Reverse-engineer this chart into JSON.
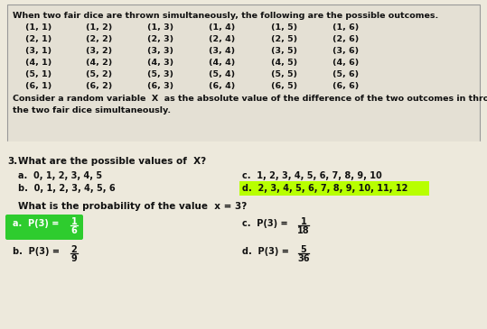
{
  "bg_color": "#ede9dc",
  "box_bg": "#e4e0d4",
  "box_border": "#999999",
  "title_text": "When two fair dice are thrown simultaneously, the following are the possible outcomes.",
  "dice_outcomes": [
    [
      "(1, 1)",
      "(1, 2)",
      "(1, 3)",
      "(1, 4)",
      "(1, 5)",
      "(1, 6)"
    ],
    [
      "(2, 1)",
      "(2, 2)",
      "(2, 3)",
      "(2, 4)",
      "(2, 5)",
      "(2, 6)"
    ],
    [
      "(3, 1)",
      "(3, 2)",
      "(3, 3)",
      "(3, 4)",
      "(3, 5)",
      "(3, 6)"
    ],
    [
      "(4, 1)",
      "(4, 2)",
      "(4, 3)",
      "(4, 4)",
      "(4, 5)",
      "(4, 6)"
    ],
    [
      "(5, 1)",
      "(5, 2)",
      "(5, 3)",
      "(5, 4)",
      "(5, 5)",
      "(5, 6)"
    ],
    [
      "(6, 1)",
      "(6, 2)",
      "(6, 3)",
      "(6, 4)",
      "(6, 5)",
      "(6, 6)"
    ]
  ],
  "consider_line1": "Consider a random variable  X  as the absolute value of the difference of the two outcomes in throwing",
  "consider_line2": "the two fair dice simultaneously.",
  "q1_num": "3.",
  "q1_text": "What are the possible values of  X?",
  "q1_a": "a.  0, 1, 2, 3, 4, 5",
  "q1_b": "b.  0, 1, 2, 3, 4, 5, 6",
  "q1_c": "c.  1, 2, 3, 4, 5, 6, 7, 8, 9, 10",
  "q1_d": "d.  2, 3, 4, 5, 6, 7, 8, 9, 10, 11, 12",
  "q2_text": "What is the probability of the value  x = 3?",
  "q2_a_label": "a.  P(3) = ",
  "q2_a_num": "1",
  "q2_a_den": "6",
  "q2_b_label": "b.  P(3) = ",
  "q2_b_num": "2",
  "q2_b_den": "9",
  "q2_c_label": "c.  P(3) = ",
  "q2_c_num": "1",
  "q2_c_den": "18",
  "q2_d_label": "d.  P(3) = ",
  "q2_d_num": "5",
  "q2_d_den": "36",
  "hl_green": "#2ecc2e",
  "hl_yellow": "#b8ff00",
  "text_color": "#111111",
  "text_color_dark": "#222222"
}
